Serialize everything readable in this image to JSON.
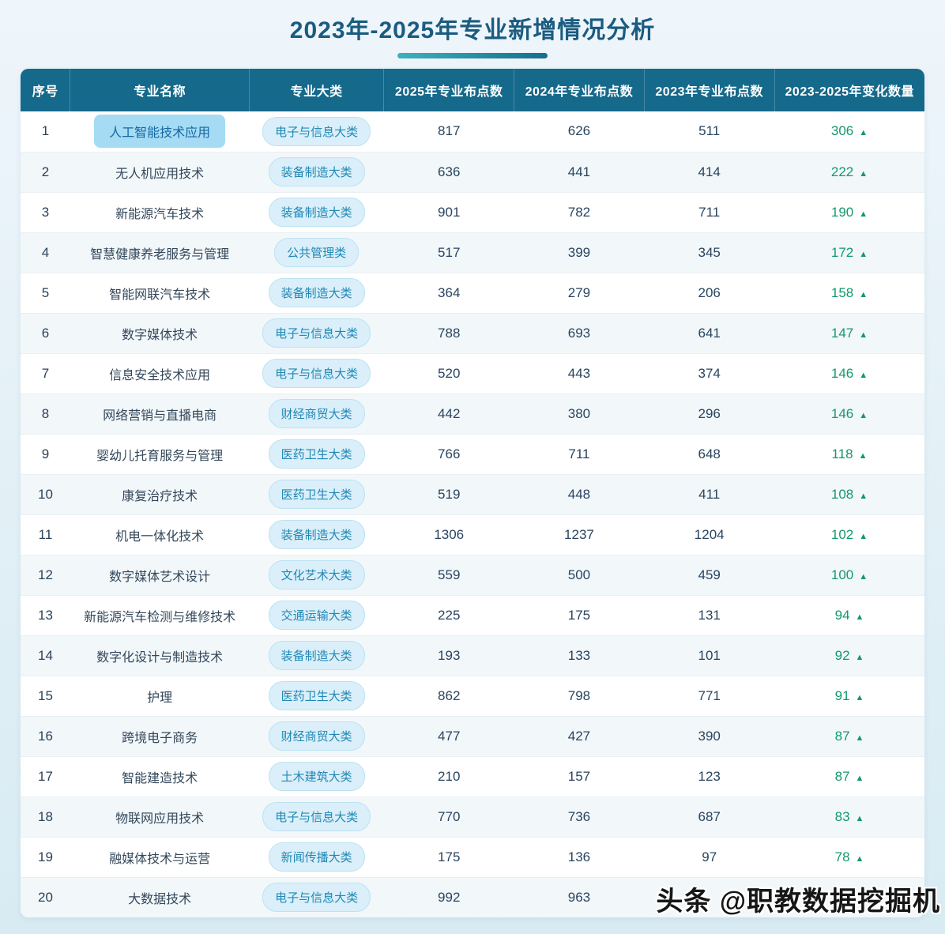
{
  "page": {
    "watermark": "头条 @职教数据挖掘机"
  },
  "icons": {
    "up_triangle": "▲"
  },
  "colors": {
    "header_bg": "#15698b",
    "title_color": "#1a5c80",
    "underline_teal_start": "#3fb0bc",
    "underline_teal_end": "#156f8d",
    "increase_green": "#13996a",
    "highlight_bg": "#a5dbf3",
    "highlight_text": "#1567a3",
    "pill_bg": "#daeffa",
    "pill_border": "#bce2f2",
    "pill_text": "#2088b4",
    "row_alt_bg": "#f2f7fa",
    "number_text": "#29445f"
  },
  "chart_data": {
    "type": "table",
    "title": "2023年-2025年专业新增情况分析",
    "columns": [
      "序号",
      "专业名称",
      "专业大类",
      "2025年专业布点数",
      "2024年专业布点数",
      "2023年专业布点数",
      "2023-2025年变化数量"
    ],
    "rows": [
      {
        "no": "1",
        "major": "人工智能技术应用",
        "category": "电子与信息大类",
        "y2025": 817,
        "y2024": 626,
        "y2023": 511,
        "change": 306,
        "trend": "up",
        "highlighted": true
      },
      {
        "no": "2",
        "major": "无人机应用技术",
        "category": "装备制造大类",
        "y2025": 636,
        "y2024": 441,
        "y2023": 414,
        "change": 222,
        "trend": "up",
        "highlighted": false
      },
      {
        "no": "3",
        "major": "新能源汽车技术",
        "category": "装备制造大类",
        "y2025": 901,
        "y2024": 782,
        "y2023": 711,
        "change": 190,
        "trend": "up",
        "highlighted": false
      },
      {
        "no": "4",
        "major": "智慧健康养老服务与管理",
        "category": "公共管理类",
        "y2025": 517,
        "y2024": 399,
        "y2023": 345,
        "change": 172,
        "trend": "up",
        "highlighted": false
      },
      {
        "no": "5",
        "major": "智能网联汽车技术",
        "category": "装备制造大类",
        "y2025": 364,
        "y2024": 279,
        "y2023": 206,
        "change": 158,
        "trend": "up",
        "highlighted": false
      },
      {
        "no": "6",
        "major": "数字媒体技术",
        "category": "电子与信息大类",
        "y2025": 788,
        "y2024": 693,
        "y2023": 641,
        "change": 147,
        "trend": "up",
        "highlighted": false
      },
      {
        "no": "7",
        "major": "信息安全技术应用",
        "category": "电子与信息大类",
        "y2025": 520,
        "y2024": 443,
        "y2023": 374,
        "change": 146,
        "trend": "up",
        "highlighted": false
      },
      {
        "no": "8",
        "major": "网络营销与直播电商",
        "category": "财经商贸大类",
        "y2025": 442,
        "y2024": 380,
        "y2023": 296,
        "change": 146,
        "trend": "up",
        "highlighted": false
      },
      {
        "no": "9",
        "major": "婴幼儿托育服务与管理",
        "category": "医药卫生大类",
        "y2025": 766,
        "y2024": 711,
        "y2023": 648,
        "change": 118,
        "trend": "up",
        "highlighted": false
      },
      {
        "no": "10",
        "major": "康复治疗技术",
        "category": "医药卫生大类",
        "y2025": 519,
        "y2024": 448,
        "y2023": 411,
        "change": 108,
        "trend": "up",
        "highlighted": false
      },
      {
        "no": "11",
        "major": "机电一体化技术",
        "category": "装备制造大类",
        "y2025": 1306,
        "y2024": 1237,
        "y2023": 1204,
        "change": 102,
        "trend": "up",
        "highlighted": false
      },
      {
        "no": "12",
        "major": "数字媒体艺术设计",
        "category": "文化艺术大类",
        "y2025": 559,
        "y2024": 500,
        "y2023": 459,
        "change": 100,
        "trend": "up",
        "highlighted": false
      },
      {
        "no": "13",
        "major": "新能源汽车检测与维修技术",
        "category": "交通运输大类",
        "y2025": 225,
        "y2024": 175,
        "y2023": 131,
        "change": 94,
        "trend": "up",
        "highlighted": false
      },
      {
        "no": "14",
        "major": "数字化设计与制造技术",
        "category": "装备制造大类",
        "y2025": 193,
        "y2024": 133,
        "y2023": 101,
        "change": 92,
        "trend": "up",
        "highlighted": false
      },
      {
        "no": "15",
        "major": "护理",
        "category": "医药卫生大类",
        "y2025": 862,
        "y2024": 798,
        "y2023": 771,
        "change": 91,
        "trend": "up",
        "highlighted": false
      },
      {
        "no": "16",
        "major": "跨境电子商务",
        "category": "财经商贸大类",
        "y2025": 477,
        "y2024": 427,
        "y2023": 390,
        "change": 87,
        "trend": "up",
        "highlighted": false
      },
      {
        "no": "17",
        "major": "智能建造技术",
        "category": "土木建筑大类",
        "y2025": 210,
        "y2024": 157,
        "y2023": 123,
        "change": 87,
        "trend": "up",
        "highlighted": false
      },
      {
        "no": "18",
        "major": "物联网应用技术",
        "category": "电子与信息大类",
        "y2025": 770,
        "y2024": 736,
        "y2023": 687,
        "change": 83,
        "trend": "up",
        "highlighted": false
      },
      {
        "no": "19",
        "major": "融媒体技术与运营",
        "category": "新闻传播大类",
        "y2025": 175,
        "y2024": 136,
        "y2023": 97,
        "change": 78,
        "trend": "up",
        "highlighted": false
      },
      {
        "no": "20",
        "major": "大数据技术",
        "category": "电子与信息大类",
        "y2025": 992,
        "y2024": 963,
        "y2023": null,
        "change": null,
        "trend": null,
        "highlighted": false
      }
    ]
  }
}
